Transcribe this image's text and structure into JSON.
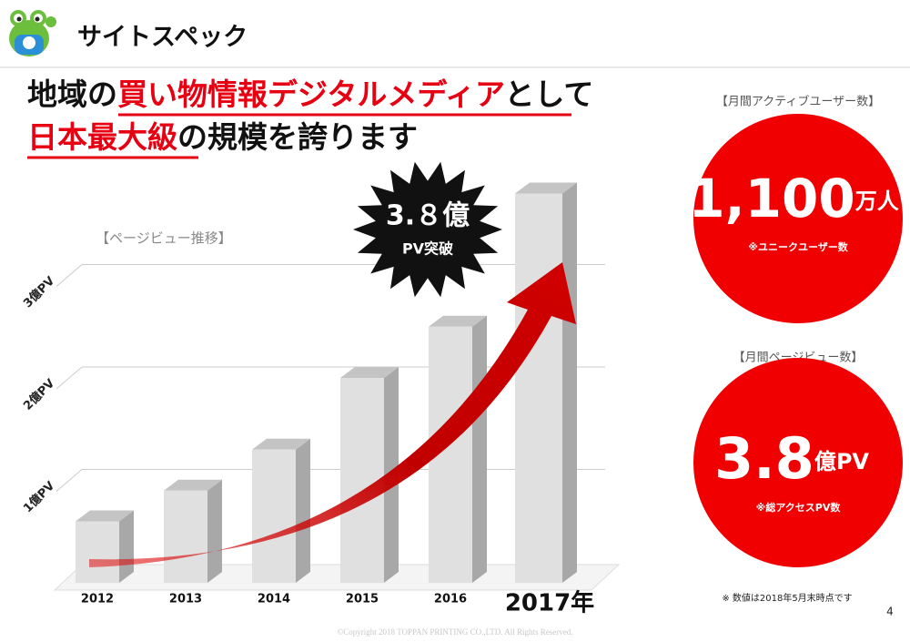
{
  "header": {
    "title": "サイトスペック"
  },
  "headline": {
    "line1": [
      "地域の",
      "買い物情報デジタルメディア",
      "として"
    ],
    "line2": [
      "日本最大級",
      "の規模を誇ります"
    ]
  },
  "chart_data": {
    "type": "bar",
    "subtitle": "【ページビュー推移】",
    "categories": [
      "2012",
      "2013",
      "2014",
      "2015",
      "2016",
      "2017年"
    ],
    "values": [
      0.6,
      0.9,
      1.3,
      2.0,
      2.5,
      3.8
    ],
    "color": "#e0e0e0",
    "ylim": [
      0,
      4
    ],
    "yticks": [
      {
        "value": 1,
        "label": "1億PV"
      },
      {
        "value": 2,
        "label": "2億PV"
      },
      {
        "value": 3,
        "label": "3億PV"
      }
    ],
    "grid": true,
    "annotation": {
      "value": "3.８億",
      "text": "PV突破"
    }
  },
  "stats": [
    {
      "label": "【月間アクティブユーザー数】",
      "value": "1,100",
      "unit": "万人",
      "note": "※ユニークユーザー数"
    },
    {
      "label": "【月間ページビュー数】",
      "value": "3.8",
      "unit": "億PV",
      "note": "※総アクセスPV数"
    }
  ],
  "footnote": "※ 数値は2018年5月末時点です",
  "page_number": "4",
  "copyright": "©Copyright 2018 TOPPAN PRINTING CO.,LTD. All Rights Reserved."
}
